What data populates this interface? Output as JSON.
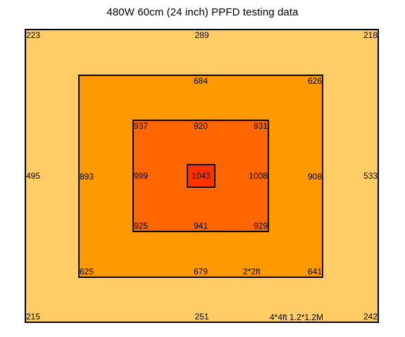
{
  "chart_data": {
    "type": "heatmap",
    "title": "480W 60cm (24 inch) PPFD testing data",
    "zones": [
      {
        "name": "outer",
        "label": "4*4ft  1.2*1.2M",
        "color": "#ffcc66"
      },
      {
        "name": "middle",
        "label": "2*2ft",
        "color": "#ff9900"
      },
      {
        "name": "inner",
        "label": "",
        "color": "#ff6600"
      },
      {
        "name": "center",
        "label": "",
        "color": "#ff3300"
      }
    ],
    "readings": [
      {
        "zone": "outer",
        "pos": "top-left",
        "value": 223
      },
      {
        "zone": "outer",
        "pos": "top-center",
        "value": 289
      },
      {
        "zone": "outer",
        "pos": "top-right",
        "value": 218
      },
      {
        "zone": "outer",
        "pos": "middle-left",
        "value": 495
      },
      {
        "zone": "outer",
        "pos": "middle-right",
        "value": 533
      },
      {
        "zone": "outer",
        "pos": "bottom-left",
        "value": 215
      },
      {
        "zone": "outer",
        "pos": "bottom-center",
        "value": 251
      },
      {
        "zone": "outer",
        "pos": "bottom-right",
        "value": 242
      },
      {
        "zone": "middle",
        "pos": "top-center",
        "value": 684
      },
      {
        "zone": "middle",
        "pos": "top-right",
        "value": 626
      },
      {
        "zone": "middle",
        "pos": "middle-left",
        "value": 893
      },
      {
        "zone": "middle",
        "pos": "middle-right",
        "value": 908
      },
      {
        "zone": "middle",
        "pos": "bottom-left",
        "value": 625
      },
      {
        "zone": "middle",
        "pos": "bottom-center",
        "value": 679
      },
      {
        "zone": "middle",
        "pos": "bottom-right",
        "value": 641
      },
      {
        "zone": "inner",
        "pos": "top-left",
        "value": 937
      },
      {
        "zone": "inner",
        "pos": "top-center",
        "value": 920
      },
      {
        "zone": "inner",
        "pos": "top-right",
        "value": 931
      },
      {
        "zone": "inner",
        "pos": "middle-left",
        "value": 999
      },
      {
        "zone": "inner",
        "pos": "middle-right",
        "value": 1008
      },
      {
        "zone": "inner",
        "pos": "bottom-left",
        "value": 925
      },
      {
        "zone": "inner",
        "pos": "bottom-center",
        "value": 941
      },
      {
        "zone": "inner",
        "pos": "bottom-right",
        "value": 929
      },
      {
        "zone": "center",
        "pos": "center",
        "value": 1043
      }
    ]
  }
}
